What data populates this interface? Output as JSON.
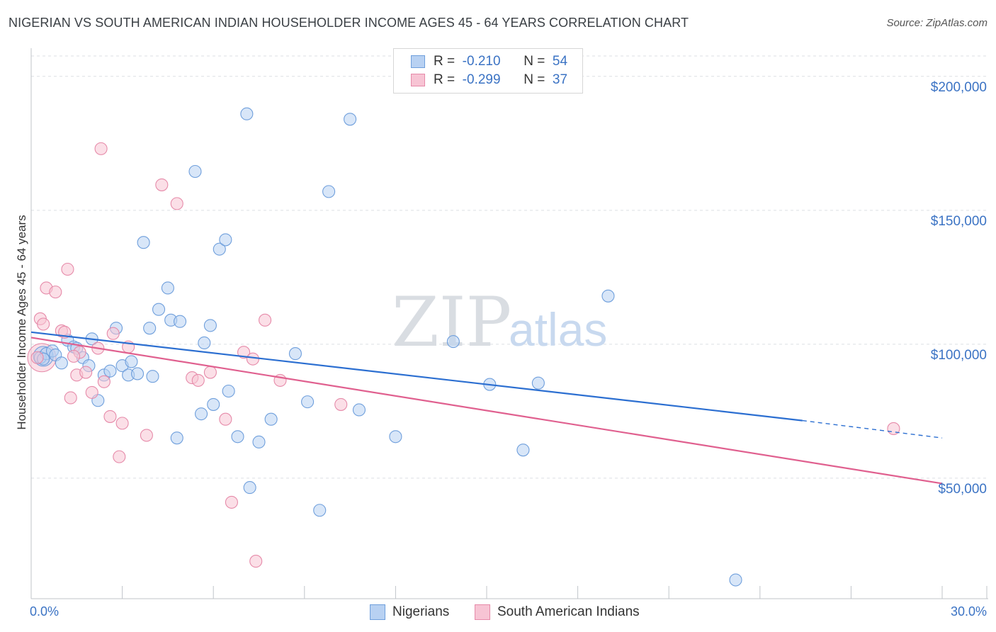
{
  "title": "NIGERIAN VS SOUTH AMERICAN INDIAN HOUSEHOLDER INCOME AGES 45 - 64 YEARS CORRELATION CHART",
  "source": "Source: ZipAtlas.com",
  "watermark": {
    "zip": "ZIP",
    "atlas": "atlas"
  },
  "colors": {
    "nigerians_fill": "#b8d1f2",
    "nigerians_stroke": "#6f9fdc",
    "nigerians_line": "#2c6fd1",
    "sai_fill": "#f7c4d4",
    "sai_stroke": "#e68aa9",
    "sai_line": "#e0608f",
    "axis_text": "#3b73c4",
    "grid": "#dcdfe4"
  },
  "legend": {
    "rows": [
      {
        "r_label": "R =",
        "r_value": "-0.210",
        "n_label": "N =",
        "n_value": "54"
      },
      {
        "r_label": "R =",
        "r_value": "-0.299",
        "n_label": "N =",
        "n_value": "37"
      }
    ]
  },
  "bottom_legend": [
    "Nigerians",
    "South American Indians"
  ],
  "chart_data": {
    "type": "scatter",
    "title": "NIGERIAN VS SOUTH AMERICAN INDIAN HOUSEHOLDER INCOME AGES 45 - 64 YEARS CORRELATION CHART",
    "xlabel": "",
    "ylabel": "Householder Income Ages 45 - 64 years",
    "xlim": [
      0,
      30
    ],
    "ylim": [
      5000,
      210000
    ],
    "x_tick_labels": [
      "0.0%",
      "30.0%"
    ],
    "y_tick_values": [
      50000,
      100000,
      150000,
      200000
    ],
    "y_tick_labels": [
      "$50,000",
      "$100,000",
      "$150,000",
      "$200,000"
    ],
    "grid": true,
    "legend_position": "top-center",
    "series": [
      {
        "name": "Nigerians",
        "r": -0.21,
        "n": 54,
        "trend": {
          "x0": 0.0,
          "y0": 104500,
          "x1": 25.4,
          "y1": 71500,
          "dash_to_x": 30.0,
          "dash_to_y": 65000
        },
        "points": [
          [
            0.3,
            95000
          ],
          [
            0.5,
            96500
          ],
          [
            0.7,
            97500
          ],
          [
            0.8,
            96000
          ],
          [
            1.0,
            93000
          ],
          [
            1.2,
            101500
          ],
          [
            1.4,
            99000
          ],
          [
            1.5,
            98500
          ],
          [
            1.7,
            95000
          ],
          [
            1.9,
            92000
          ],
          [
            2.0,
            102000
          ],
          [
            2.2,
            79000
          ],
          [
            2.4,
            88500
          ],
          [
            2.6,
            90000
          ],
          [
            2.8,
            106000
          ],
          [
            3.0,
            92000
          ],
          [
            3.2,
            88500
          ],
          [
            3.3,
            93500
          ],
          [
            3.5,
            89000
          ],
          [
            3.7,
            138000
          ],
          [
            3.9,
            106000
          ],
          [
            4.0,
            88000
          ],
          [
            4.2,
            113000
          ],
          [
            4.5,
            121000
          ],
          [
            4.6,
            109000
          ],
          [
            4.8,
            65000
          ],
          [
            4.9,
            108500
          ],
          [
            5.4,
            164500
          ],
          [
            5.6,
            74000
          ],
          [
            5.7,
            100500
          ],
          [
            5.9,
            107000
          ],
          [
            6.0,
            77500
          ],
          [
            6.2,
            135500
          ],
          [
            6.4,
            139000
          ],
          [
            6.5,
            82500
          ],
          [
            6.8,
            65500
          ],
          [
            7.1,
            186000
          ],
          [
            7.5,
            63500
          ],
          [
            7.2,
            46500
          ],
          [
            7.9,
            72000
          ],
          [
            8.7,
            96500
          ],
          [
            9.1,
            78500
          ],
          [
            9.5,
            38000
          ],
          [
            9.8,
            157000
          ],
          [
            10.5,
            184000
          ],
          [
            10.8,
            75500
          ],
          [
            12.0,
            65500
          ],
          [
            13.9,
            101000
          ],
          [
            15.1,
            85000
          ],
          [
            16.2,
            60500
          ],
          [
            16.7,
            85500
          ],
          [
            19.0,
            118000
          ],
          [
            23.2,
            12000
          ],
          [
            0.4,
            94500
          ]
        ]
      },
      {
        "name": "South American Indians",
        "r": -0.299,
        "n": 37,
        "trend": {
          "x0": 0.0,
          "y0": 102500,
          "x1": 30.0,
          "y1": 48000
        },
        "points": [
          [
            0.2,
            95000
          ],
          [
            0.3,
            109500
          ],
          [
            0.4,
            107500
          ],
          [
            0.5,
            121000
          ],
          [
            0.8,
            119500
          ],
          [
            1.0,
            105000
          ],
          [
            1.1,
            104500
          ],
          [
            1.2,
            128000
          ],
          [
            1.3,
            80000
          ],
          [
            1.5,
            88500
          ],
          [
            1.6,
            97000
          ],
          [
            1.8,
            89500
          ],
          [
            2.0,
            82000
          ],
          [
            2.2,
            98500
          ],
          [
            2.3,
            173000
          ],
          [
            2.4,
            86000
          ],
          [
            2.6,
            73000
          ],
          [
            2.7,
            104000
          ],
          [
            2.9,
            58000
          ],
          [
            3.0,
            70500
          ],
          [
            3.2,
            99000
          ],
          [
            3.8,
            66000
          ],
          [
            4.3,
            159500
          ],
          [
            4.8,
            152500
          ],
          [
            5.3,
            87500
          ],
          [
            5.5,
            86500
          ],
          [
            5.9,
            89500
          ],
          [
            6.4,
            72000
          ],
          [
            6.6,
            41000
          ],
          [
            7.0,
            97000
          ],
          [
            7.3,
            94500
          ],
          [
            7.4,
            19000
          ],
          [
            7.7,
            109000
          ],
          [
            8.2,
            86500
          ],
          [
            10.2,
            77500
          ],
          [
            28.4,
            68500
          ],
          [
            1.4,
            95500
          ]
        ]
      }
    ]
  }
}
